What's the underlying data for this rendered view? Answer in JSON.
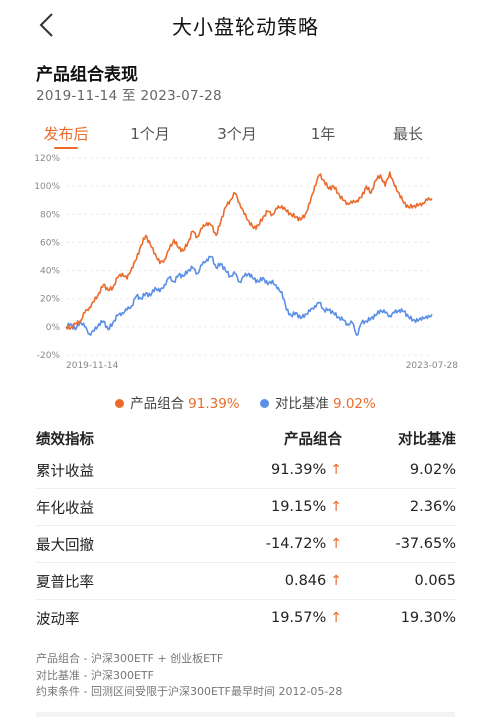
{
  "header": {
    "title": "大小盘轮动策略",
    "back_icon": "chevron-left-icon"
  },
  "section": {
    "title": "产品组合表现",
    "date_range": "2019-11-14 至 2023-07-28"
  },
  "tabs": [
    {
      "label": "发布后",
      "active": true
    },
    {
      "label": "1个月",
      "active": false
    },
    {
      "label": "3个月",
      "active": false
    },
    {
      "label": "1年",
      "active": false
    },
    {
      "label": "最长",
      "active": false
    }
  ],
  "chart_data": {
    "type": "line",
    "y_tick_labels": [
      "120%",
      "100%",
      "80%",
      "60%",
      "40%",
      "20%",
      "0%",
      "-20%"
    ],
    "ylim": [
      -20,
      120
    ],
    "x_tick_labels": [
      "2019-11-14",
      "2023-07-28"
    ],
    "grid": true,
    "colors": {
      "portfolio": "#ea6b2c",
      "benchmark": "#5b8ee6"
    },
    "series": [
      {
        "name": "产品组合",
        "values": [
          0,
          -1,
          2,
          4,
          10,
          14,
          18,
          24,
          30,
          26,
          28,
          35,
          38,
          34,
          42,
          48,
          58,
          65,
          58,
          52,
          45,
          48,
          55,
          62,
          56,
          54,
          60,
          68,
          64,
          70,
          74,
          72,
          65,
          75,
          85,
          90,
          95,
          88,
          80,
          75,
          70,
          72,
          78,
          82,
          80,
          84,
          86,
          82,
          80,
          78,
          76,
          80,
          88,
          100,
          108,
          104,
          98,
          100,
          95,
          90,
          88,
          88,
          90,
          92,
          100,
          95,
          104,
          108,
          100,
          110,
          100,
          95,
          88,
          85,
          86,
          86,
          88,
          90,
          91.39
        ]
      },
      {
        "name": "对比基准",
        "values": [
          0,
          2,
          -2,
          4,
          0,
          -5,
          -3,
          2,
          4,
          -2,
          3,
          8,
          10,
          12,
          15,
          22,
          20,
          24,
          22,
          28,
          25,
          30,
          35,
          32,
          37,
          36,
          40,
          42,
          38,
          44,
          48,
          50,
          42,
          45,
          40,
          36,
          38,
          32,
          36,
          38,
          34,
          32,
          35,
          30,
          33,
          27,
          25,
          12,
          8,
          10,
          6,
          9,
          11,
          15,
          17,
          12,
          12,
          10,
          7,
          5,
          2,
          3,
          -6,
          3,
          4,
          6,
          8,
          12,
          10,
          8,
          10,
          12,
          11,
          7,
          5,
          4,
          7,
          6,
          9.02
        ]
      }
    ]
  },
  "legend": {
    "portfolio_label": "产品组合",
    "portfolio_value": "91.39%",
    "benchmark_label": "对比基准",
    "benchmark_value": "9.02%"
  },
  "metrics": {
    "headers": [
      "绩效指标",
      "产品组合",
      "对比基准"
    ],
    "rows": [
      {
        "label": "累计收益",
        "portfolio": "91.39%",
        "benchmark": "9.02%"
      },
      {
        "label": "年化收益",
        "portfolio": "19.15%",
        "benchmark": "2.36%"
      },
      {
        "label": "最大回撤",
        "portfolio": "-14.72%",
        "benchmark": "-37.65%"
      },
      {
        "label": "夏普比率",
        "portfolio": "0.846",
        "benchmark": "0.065"
      },
      {
        "label": "波动率",
        "portfolio": "19.57%",
        "benchmark": "19.30%"
      }
    ],
    "up_arrow": "↑"
  },
  "notes": [
    "产品组合 - 沪深300ETF + 创业板ETF",
    "对比基准 - 沪深300ETF",
    "约束条件 - 回测区间受限于沪深300ETF最早时间 2012-05-28"
  ]
}
